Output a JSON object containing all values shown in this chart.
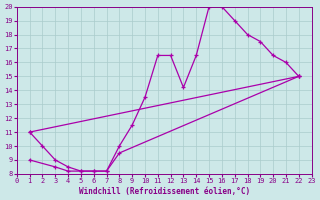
{
  "bg_color": "#cde8e8",
  "line_color": "#aa00aa",
  "grid_color": "#aacccc",
  "xlabel": "Windchill (Refroidissement éolien,°C)",
  "xlim": [
    0,
    23
  ],
  "ylim": [
    8,
    20
  ],
  "xticks": [
    0,
    1,
    2,
    3,
    4,
    5,
    6,
    7,
    8,
    9,
    10,
    11,
    12,
    13,
    14,
    15,
    16,
    17,
    18,
    19,
    20,
    21,
    22,
    23
  ],
  "yticks": [
    8,
    9,
    10,
    11,
    12,
    13,
    14,
    15,
    16,
    17,
    18,
    19,
    20
  ],
  "curve1_x": [
    1,
    2,
    3,
    4,
    5,
    6,
    7,
    8,
    9,
    10,
    11,
    12,
    13,
    14,
    15,
    16,
    17,
    18,
    19,
    20,
    21,
    22
  ],
  "curve1_y": [
    11.0,
    10.0,
    9.0,
    8.5,
    8.2,
    8.2,
    8.2,
    10.0,
    11.5,
    13.5,
    16.5,
    16.5,
    14.2,
    16.5,
    20.0,
    20.0,
    19.0,
    18.0,
    17.5,
    16.5,
    16.0,
    15.0
  ],
  "curve2_x": [
    1,
    22
  ],
  "curve2_y": [
    11.0,
    15.0
  ],
  "curve3_x": [
    1,
    3,
    4,
    5,
    6,
    7,
    8,
    22
  ],
  "curve3_y": [
    9.0,
    8.5,
    8.2,
    8.2,
    8.2,
    8.2,
    9.5,
    15.0
  ]
}
